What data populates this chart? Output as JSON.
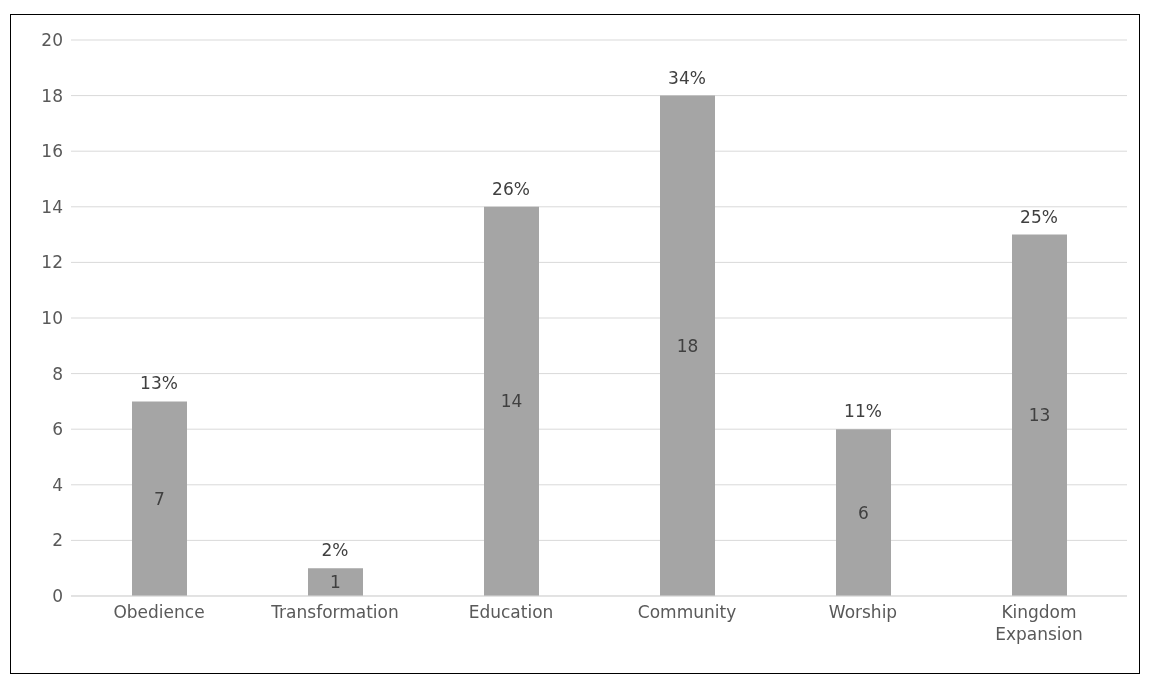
{
  "chart_data": {
    "type": "bar",
    "categories": [
      "Obedience",
      "Transformation",
      "Education",
      "Community",
      "Worship",
      "Kingdom Expansion"
    ],
    "values": [
      7,
      1,
      14,
      18,
      6,
      13
    ],
    "value_labels": [
      "7",
      "1",
      "14",
      "18",
      "6",
      "13"
    ],
    "annotations": [
      {
        "text": "13%",
        "x": "Obedience",
        "y": 7
      },
      {
        "text": "2%",
        "x": "Transformation",
        "y": 1
      },
      {
        "text": "26%",
        "x": "Education",
        "y": 14
      },
      {
        "text": "34%",
        "x": "Community",
        "y": 18
      },
      {
        "text": "11%",
        "x": "Worship",
        "y": 6
      },
      {
        "text": "25%",
        "x": "Kingdom Expansion",
        "y": 13
      }
    ],
    "color": "#a5a5a5",
    "ylim": [
      0,
      20
    ],
    "yticks": [
      0,
      2,
      4,
      6,
      8,
      10,
      12,
      14,
      16,
      18,
      20
    ],
    "grid": "y"
  }
}
